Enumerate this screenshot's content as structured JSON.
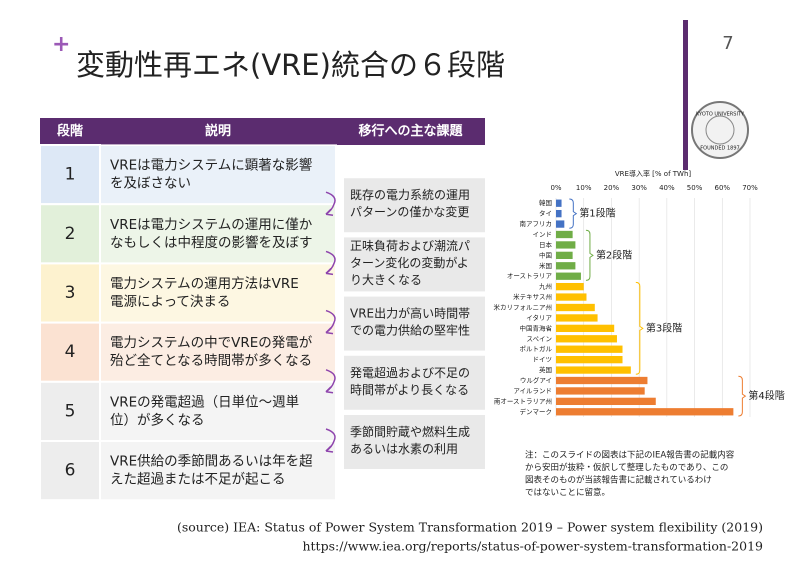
{
  "slide": {
    "title": "変動性再エネ(VRE)統合の６段階",
    "page": "7",
    "logo": [
      "KYOTO UNIVERSITY",
      "FOUNDED 1897"
    ]
  },
  "table": {
    "headers": [
      "段階",
      "説明",
      "移行への主な課題"
    ],
    "rows": [
      {
        "stage": "1",
        "desc": [
          "VREは電力システムに顕著な影響",
          "を及ぼさない"
        ]
      },
      {
        "stage": "2",
        "desc": [
          "VREは電力システムの運用に僅か",
          "なもしくは中程度の影響を及ぼす"
        ]
      },
      {
        "stage": "3",
        "desc": [
          "電力システムの運用方法はVRE",
          "電源によって決まる"
        ]
      },
      {
        "stage": "4",
        "desc": [
          "電力システムの中でVREの発電が",
          "殆ど全てとなる時間帯が多くなる"
        ]
      },
      {
        "stage": "5",
        "desc": [
          "VREの発電超過（日単位〜週単",
          "位）が多くなる"
        ]
      },
      {
        "stage": "6",
        "desc": [
          "VRE供給の季節間あるいは年を超",
          "えた超過または不足が起こる"
        ]
      }
    ],
    "challenges": [
      [
        "既存の電力系統の運用",
        "パターンの僅かな変更"
      ],
      [
        "正味負荷および潮流パ",
        "ターン変化の変動がよ",
        "り大きくなる"
      ],
      [
        "VRE出力が高い時間帯",
        "での電力供給の堅牢性"
      ],
      [
        "発電超過および不足の",
        "時間帯がより長くなる"
      ],
      [
        "季節間貯蔵や燃料生成",
        "あるいは水素の利用"
      ]
    ]
  },
  "chart_data": {
    "type": "bar",
    "orientation": "horizontal",
    "title": "VRE導入率 [% of TWh]",
    "categories": [
      "韓国",
      "タイ",
      "南アフリカ",
      "インド",
      "日本",
      "中国",
      "米国",
      "オーストラリア",
      "九州",
      "米テキサス州",
      "米カリフォルニア州",
      "イタリア",
      "中国青海省",
      "スペイン",
      "ポルトガル",
      "ドイツ",
      "英国",
      "ウルグアイ",
      "アイルランド",
      "南オーストラリア州",
      "デンマーク"
    ],
    "series": [
      {
        "name": "第1段階",
        "color": "#4472c4",
        "values": [
          2,
          2,
          3,
          null,
          null,
          null,
          null,
          null,
          null,
          null,
          null,
          null,
          null,
          null,
          null,
          null,
          null,
          null,
          null,
          null,
          null
        ]
      },
      {
        "name": "第2段階",
        "color": "#70ad47",
        "values": [
          null,
          null,
          null,
          6,
          7,
          6,
          7,
          9,
          null,
          null,
          null,
          null,
          null,
          null,
          null,
          null,
          null,
          null,
          null,
          null,
          null
        ]
      },
      {
        "name": "第3段階",
        "color": "#ffc000",
        "values": [
          null,
          null,
          null,
          null,
          null,
          null,
          null,
          null,
          10,
          11,
          14,
          15,
          21,
          22,
          24,
          24,
          27,
          null,
          null,
          null,
          null
        ]
      },
      {
        "name": "第4段階",
        "color": "#ed7d31",
        "values": [
          null,
          null,
          null,
          null,
          null,
          null,
          null,
          null,
          null,
          null,
          null,
          null,
          null,
          null,
          null,
          null,
          null,
          33,
          32,
          36,
          64
        ]
      }
    ],
    "xlim": [
      0,
      70
    ],
    "xticks": [
      {
        "value": 0,
        "label": "0%"
      },
      {
        "value": 10,
        "label": "10%"
      },
      {
        "value": 20,
        "label": "20%"
      },
      {
        "value": 30,
        "label": "30%"
      },
      {
        "value": 40,
        "label": "40%"
      },
      {
        "value": 50,
        "label": "50%"
      },
      {
        "value": 60,
        "label": "60%"
      },
      {
        "value": 70,
        "label": "70%"
      }
    ],
    "grid": true
  },
  "note": [
    "注：このスライドの図表は下記のIEA報告書の記載内容",
    "から安田が抜粋・仮訳して整理したものであり、この",
    "図表そのものが当該報告書に記載されているわけ",
    "ではないことに留意。"
  ],
  "source": [
    "(source) IEA: Status of Power System Transformation 2019 – Power system flexibility (2019)",
    "https://www.iea.org/reports/status-of-power-system-transformation-2019"
  ]
}
